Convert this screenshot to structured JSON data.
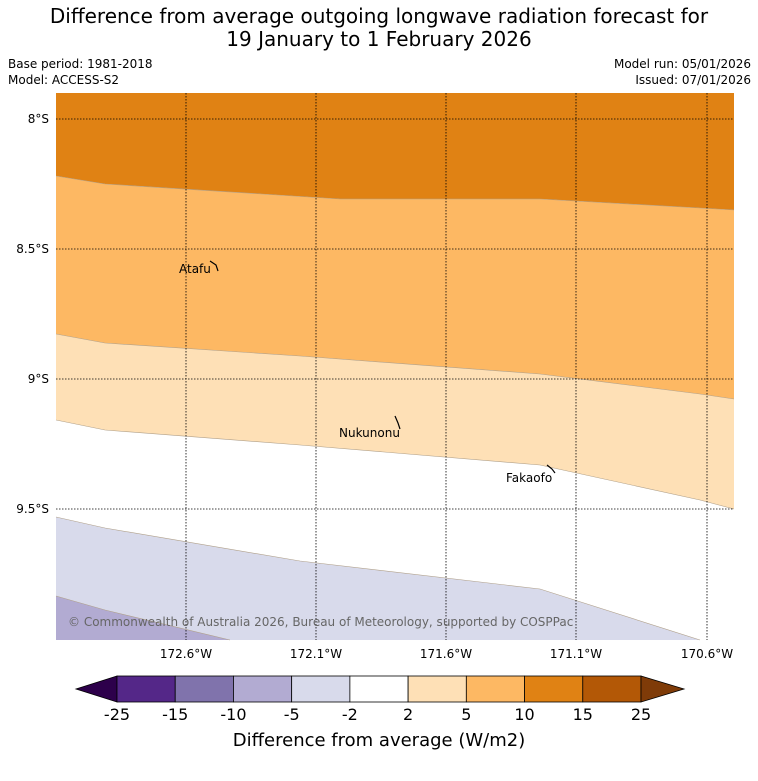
{
  "title_line1": "Difference from average outgoing longwave radiation forecast for",
  "title_line2": "19 January to 1 February 2026",
  "base_period": "Base period: 1981-2018",
  "model": "Model: ACCESS-S2",
  "model_run": "Model run: 05/01/2026",
  "issued": "Issued: 07/01/2026",
  "lat_labels": [
    "8°S",
    "8.5°S",
    "9°S",
    "9.5°S"
  ],
  "lon_labels": [
    "172.6°W",
    "172.1°W",
    "171.6°W",
    "171.1°W",
    "170.6°W"
  ],
  "places": [
    "Atafu",
    "Nukunonu",
    "Fakaofo"
  ],
  "copyright": "© Commonwealth of Australia 2026, Bureau of Meteorology, supported by COSPPac",
  "colorbar": {
    "ticks": [
      "-25",
      "-15",
      "-10",
      "-5",
      "-2",
      "2",
      "5",
      "10",
      "15",
      "25"
    ],
    "colors": [
      "#2d004b",
      "#542788",
      "#8073ac",
      "#b2abd2",
      "#d8daeb",
      "#ffffff",
      "#fee0b6",
      "#fdb863",
      "#e08214",
      "#b35806",
      "#7f3b08"
    ],
    "label": "Difference from average (W/m2)"
  }
}
